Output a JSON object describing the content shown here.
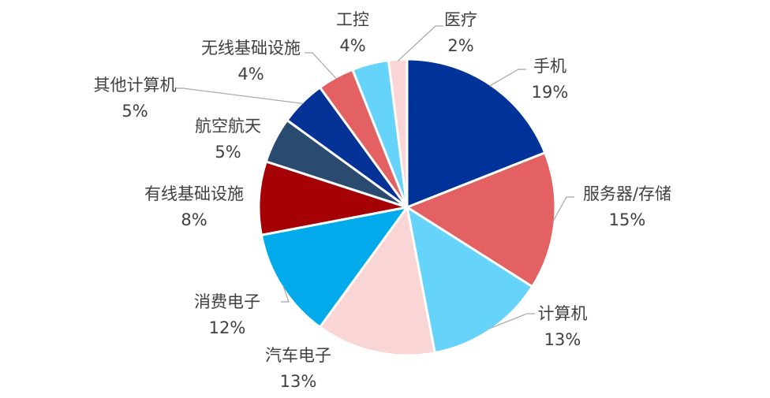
{
  "chart_data": {
    "type": "pie",
    "title": "",
    "slices": [
      {
        "label": "手机",
        "value": 19,
        "display": "19%",
        "color": "#003399"
      },
      {
        "label": "服务器/存储",
        "value": 15,
        "display": "15%",
        "color": "#E46163"
      },
      {
        "label": "计算机",
        "value": 13,
        "display": "13%",
        "color": "#66D3FA"
      },
      {
        "label": "汽车电子",
        "value": 13,
        "display": "13%",
        "color": "#FAD5D6"
      },
      {
        "label": "消费电子",
        "value": 12,
        "display": "12%",
        "color": "#00AAEB"
      },
      {
        "label": "有线基础设施",
        "value": 8,
        "display": "8%",
        "color": "#A50005"
      },
      {
        "label": "航空航天",
        "value": 5,
        "display": "5%",
        "color": "#2A4A6F"
      },
      {
        "label": "其他计算机",
        "value": 5,
        "display": "5%",
        "color": "#053297"
      },
      {
        "label": "无线基础设施",
        "value": 4,
        "display": "4%",
        "color": "#E46163"
      },
      {
        "label": "工控",
        "value": 4,
        "display": "4%",
        "color": "#66D3FA"
      },
      {
        "label": "医疗",
        "value": 2,
        "display": "2%",
        "color": "#FAD5D6"
      }
    ],
    "start_position": "12 o'clock",
    "direction": "clockwise",
    "legend": "none",
    "label_position": "outside with leader lines"
  }
}
